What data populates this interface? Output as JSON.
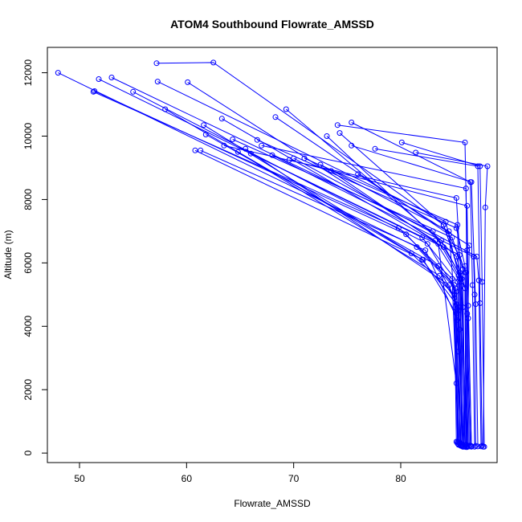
{
  "chart_data": {
    "type": "line",
    "title": "ATOM4 Southbound Flowrate_AMSSD",
    "xlabel": "Flowrate_AMSSD",
    "ylabel": "Altitude (m)",
    "xlim": [
      47,
      89
    ],
    "ylim": [
      -300,
      12800
    ],
    "xticks": [
      50,
      60,
      70,
      80
    ],
    "yticks": [
      0,
      2000,
      4000,
      6000,
      8000,
      10000,
      12000
    ],
    "grid": false,
    "legend": "none",
    "color": "#0000ff",
    "marker": "open-circle",
    "series": [
      {
        "x": [
          48.0,
          81.5,
          85.1,
          85.3
        ],
        "y": [
          12000,
          6500,
          5200,
          300
        ]
      },
      {
        "x": [
          51.8,
          82.0,
          85.3,
          85.6
        ],
        "y": [
          11800,
          6800,
          5400,
          250
        ]
      },
      {
        "x": [
          53.0,
          83.0,
          85.4,
          85.7
        ],
        "y": [
          11850,
          7000,
          5600,
          220
        ]
      },
      {
        "x": [
          57.2,
          62.5,
          84.0,
          85.5,
          85.8
        ],
        "y": [
          12300,
          12320,
          7200,
          5700,
          200
        ]
      },
      {
        "x": [
          51.3,
          79.8,
          84.8,
          85.4
        ],
        "y": [
          11400,
          7100,
          5500,
          280
        ]
      },
      {
        "x": [
          51.4,
          80.5,
          85.0,
          85.6
        ],
        "y": [
          11420,
          6900,
          5300,
          240
        ]
      },
      {
        "x": [
          55.0,
          82.5,
          85.2,
          85.9
        ],
        "y": [
          11400,
          6600,
          5100,
          210
        ]
      },
      {
        "x": [
          57.3,
          84.2,
          85.5,
          86.0
        ],
        "y": [
          11720,
          7300,
          5500,
          200
        ]
      },
      {
        "x": [
          60.1,
          83.2,
          85.6,
          86.2
        ],
        "y": [
          11700,
          6700,
          5400,
          190
        ]
      },
      {
        "x": [
          58.0,
          81.0,
          85.0,
          85.3
        ],
        "y": [
          10850,
          6300,
          5000,
          350
        ]
      },
      {
        "x": [
          61.6,
          82.0,
          85.2,
          85.4
        ],
        "y": [
          10350,
          6100,
          4700,
          330
        ]
      },
      {
        "x": [
          61.8,
          83.5,
          85.4,
          85.5
        ],
        "y": [
          10050,
          5900,
          4600,
          300
        ]
      },
      {
        "x": [
          63.3,
          84.0,
          85.6,
          85.7
        ],
        "y": [
          10550,
          6500,
          5600,
          270
        ]
      },
      {
        "x": [
          64.3,
          84.8,
          85.8,
          86.0
        ],
        "y": [
          9900,
          6800,
          5800,
          250
        ]
      },
      {
        "x": [
          66.6,
          85.2,
          86.0,
          86.3
        ],
        "y": [
          9880,
          7100,
          5900,
          230
        ]
      },
      {
        "x": [
          68.3,
          84.5,
          86.1,
          86.4
        ],
        "y": [
          10600,
          6900,
          5700,
          210
        ]
      },
      {
        "x": [
          69.3,
          83.8,
          85.7,
          85.9
        ],
        "y": [
          10850,
          6700,
          5500,
          200
        ]
      },
      {
        "x": [
          73.1,
          85.2,
          86.0,
          86.1
        ],
        "y": [
          10000,
          6200,
          5200,
          190
        ]
      },
      {
        "x": [
          74.1,
          86.0,
          86.2,
          86.6
        ],
        "y": [
          10350,
          9800,
          6400,
          200
        ]
      },
      {
        "x": [
          74.3,
          84.0,
          86.0,
          86.2
        ],
        "y": [
          10100,
          7200,
          5200,
          220
        ]
      },
      {
        "x": [
          75.4,
          86.5,
          86.7,
          86.9
        ],
        "y": [
          10430,
          8550,
          5300,
          200
        ]
      },
      {
        "x": [
          75.4,
          86.6,
          87.0,
          87.2
        ],
        "y": [
          9700,
          8550,
          4700,
          210
        ]
      },
      {
        "x": [
          77.6,
          87.2,
          87.4,
          87.6
        ],
        "y": [
          9600,
          9050,
          4730,
          230
        ]
      },
      {
        "x": [
          80.1,
          87.4,
          87.6,
          87.8
        ],
        "y": [
          9800,
          9050,
          5400,
          200
        ]
      },
      {
        "x": [
          81.4,
          88.1,
          87.9,
          87.7
        ],
        "y": [
          9480,
          9050,
          7750,
          200
        ]
      },
      {
        "x": [
          60.8,
          82.1,
          85.2,
          85.4
        ],
        "y": [
          9550,
          6100,
          4400,
          340
        ]
      },
      {
        "x": [
          61.3,
          82.3,
          85.3,
          85.6
        ],
        "y": [
          9550,
          6400,
          4200,
          310
        ]
      },
      {
        "x": [
          63.5,
          85.2,
          85.8,
          86.1
        ],
        "y": [
          9700,
          8050,
          4600,
          260
        ]
      },
      {
        "x": [
          67.0,
          86.1,
          86.2,
          86.5
        ],
        "y": [
          9700,
          8350,
          4400,
          240
        ]
      },
      {
        "x": [
          69.6,
          86.2,
          86.3,
          86.6
        ],
        "y": [
          9250,
          7800,
          4250,
          220
        ]
      },
      {
        "x": [
          71.0,
          85.3,
          85.5,
          85.8
        ],
        "y": [
          9300,
          7200,
          3900,
          200
        ]
      },
      {
        "x": [
          72.5,
          84.5,
          85.4,
          85.6
        ],
        "y": [
          9100,
          7000,
          3200,
          230
        ]
      },
      {
        "x": [
          73.5,
          83.5,
          85.2,
          85.4
        ],
        "y": [
          8900,
          6600,
          2200,
          260
        ]
      },
      {
        "x": [
          76.0,
          86.4,
          86.3,
          86.2
        ],
        "y": [
          8800,
          6550,
          4650,
          200
        ]
      },
      {
        "x": [
          64.8,
          83.6,
          85.0,
          85.2
        ],
        "y": [
          9500,
          5600,
          4900,
          360
        ]
      },
      {
        "x": [
          65.5,
          84.5,
          85.4,
          85.5
        ],
        "y": [
          9600,
          5300,
          4500,
          300
        ]
      },
      {
        "x": [
          66.0,
          85.5,
          86.0,
          86.1
        ],
        "y": [
          9450,
          6250,
          5700,
          250
        ]
      },
      {
        "x": [
          68.0,
          86.8,
          86.9,
          87.0
        ],
        "y": [
          9400,
          6200,
          5000,
          230
        ]
      },
      {
        "x": [
          70.0,
          87.1,
          87.3,
          87.5
        ],
        "y": [
          9300,
          6200,
          5450,
          210
        ]
      }
    ]
  }
}
